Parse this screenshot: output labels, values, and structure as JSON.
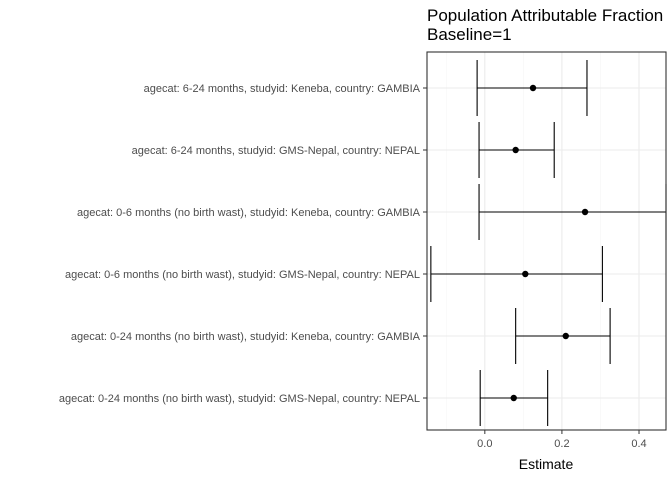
{
  "chart_data": {
    "type": "forest",
    "title_lines": [
      "Population Attributable Fraction",
      "Baseline=1"
    ],
    "xlabel": "Estimate",
    "ylabel": "",
    "xlim": [
      -0.15,
      0.47
    ],
    "xticks": [
      0.0,
      0.2,
      0.4
    ],
    "xtick_labels": [
      "0.0",
      "0.2",
      "0.4"
    ],
    "grid": true,
    "colors": {
      "point": "#000000",
      "errorbar": "#000000",
      "grid_major": "#ebebeb",
      "grid_minor": "#f5f5f5",
      "panel_border": "#333333"
    },
    "rows": [
      {
        "label": "agecat: 6-24 months, studyid: Keneba, country: GAMBIA",
        "estimate": 0.125,
        "lower": -0.02,
        "upper": 0.265
      },
      {
        "label": "agecat: 6-24 months, studyid: GMS-Nepal, country: NEPAL",
        "estimate": 0.08,
        "lower": -0.015,
        "upper": 0.18
      },
      {
        "label": "agecat: 0-6 months (no birth wast), studyid: Keneba, country: GAMBIA",
        "estimate": 0.26,
        "lower": -0.015,
        "upper": 0.47
      },
      {
        "label": "agecat: 0-6 months (no birth wast), studyid: GMS-Nepal, country: NEPAL",
        "estimate": 0.105,
        "lower": -0.14,
        "upper": 0.305
      },
      {
        "label": "agecat: 0-24 months (no birth wast), studyid: Keneba, country: GAMBIA",
        "estimate": 0.21,
        "lower": 0.08,
        "upper": 0.325
      },
      {
        "label": "agecat: 0-24 months (no birth wast), studyid: GMS-Nepal, country: NEPAL",
        "estimate": 0.075,
        "lower": -0.012,
        "upper": 0.163
      }
    ]
  }
}
